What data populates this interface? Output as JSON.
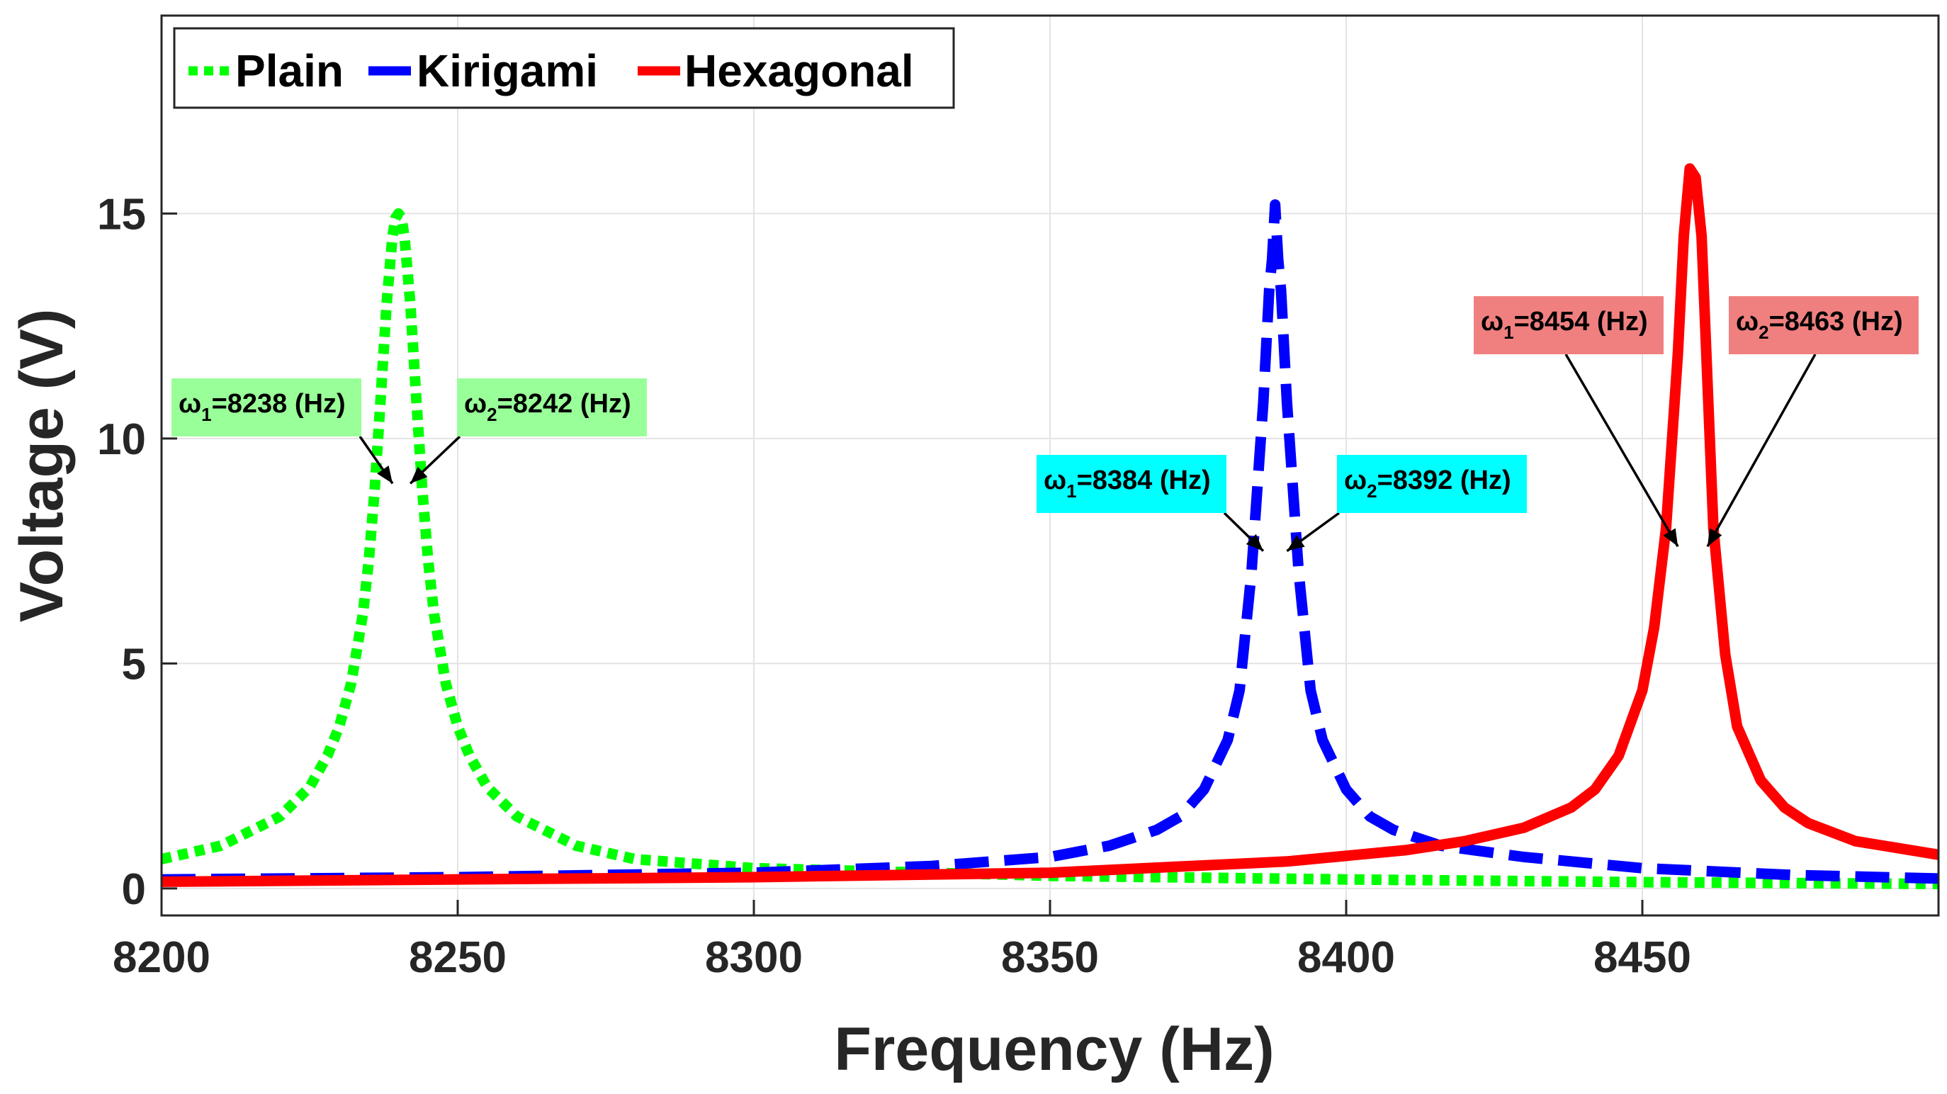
{
  "chart_data": {
    "type": "line",
    "title": "",
    "xlabel": "Frequency (Hz)",
    "ylabel": "Voltage (V)",
    "xlim": [
      8200,
      8500
    ],
    "ylim": [
      -0.6,
      19.4
    ],
    "xticks": [
      8200,
      8250,
      8300,
      8350,
      8400,
      8450
    ],
    "yticks": [
      0,
      5,
      10,
      15
    ],
    "grid": true,
    "legend": {
      "placement": "top-left",
      "orientation": "horizontal"
    },
    "series": [
      {
        "name": "Plain",
        "color": "#00ff00",
        "style": "dotted",
        "x": [
          8200,
          8210,
          8220,
          8225,
          8228,
          8230,
          8232,
          8234,
          8235,
          8236,
          8237,
          8238,
          8239,
          8239.5,
          8240,
          8240.5,
          8241,
          8242,
          8243,
          8244,
          8245,
          8246,
          8248,
          8250,
          8252,
          8255,
          8260,
          8270,
          8280,
          8300,
          8350,
          8400,
          8450,
          8500
        ],
        "y": [
          0.65,
          0.95,
          1.6,
          2.25,
          2.95,
          3.6,
          4.55,
          6.1,
          7.3,
          8.9,
          10.9,
          13.0,
          14.5,
          14.9,
          15.0,
          14.9,
          14.5,
          13.0,
          10.9,
          8.9,
          7.3,
          6.1,
          4.55,
          3.6,
          2.95,
          2.25,
          1.6,
          0.95,
          0.65,
          0.45,
          0.28,
          0.2,
          0.14,
          0.1
        ]
      },
      {
        "name": "Kirigami",
        "color": "#0000ff",
        "style": "dashed",
        "x": [
          8200,
          8250,
          8300,
          8330,
          8350,
          8360,
          8368,
          8372,
          8376,
          8380,
          8382,
          8384,
          8386,
          8387,
          8387.5,
          8388,
          8388.5,
          8389,
          8390,
          8392,
          8394,
          8396,
          8400,
          8404,
          8408,
          8416,
          8430,
          8450,
          8475,
          8500
        ],
        "y": [
          0.2,
          0.25,
          0.35,
          0.5,
          0.7,
          0.95,
          1.3,
          1.6,
          2.2,
          3.3,
          4.4,
          7.0,
          10.8,
          13.3,
          14.0,
          15.2,
          14.0,
          13.3,
          10.8,
          7.0,
          4.4,
          3.3,
          2.2,
          1.6,
          1.3,
          0.95,
          0.7,
          0.45,
          0.3,
          0.22
        ]
      },
      {
        "name": "Hexagonal",
        "color": "#ff0000",
        "style": "solid",
        "x": [
          8200,
          8300,
          8350,
          8390,
          8410,
          8420,
          8430,
          8438,
          8442,
          8446,
          8450,
          8452,
          8454,
          8456,
          8457,
          8458,
          8459,
          8460,
          8462,
          8464,
          8466,
          8470,
          8474,
          8478,
          8486,
          8500
        ],
        "y": [
          0.15,
          0.25,
          0.35,
          0.6,
          0.85,
          1.05,
          1.35,
          1.8,
          2.2,
          2.95,
          4.4,
          5.8,
          8.0,
          11.9,
          14.5,
          16.0,
          15.8,
          14.5,
          8.0,
          5.2,
          3.6,
          2.4,
          1.8,
          1.45,
          1.05,
          0.75
        ]
      }
    ],
    "annotations": [
      {
        "symbol": "ω",
        "subscript": "1",
        "text": "=8238 (Hz)",
        "target": [
          8239,
          9.0
        ],
        "box_color": "#99ff99"
      },
      {
        "symbol": "ω",
        "subscript": "2",
        "text": "=8242 (Hz)",
        "target": [
          8242,
          9.0
        ],
        "box_color": "#99ff99"
      },
      {
        "symbol": "ω",
        "subscript": "1",
        "text": "=8384 (Hz)",
        "target": [
          8386,
          7.5
        ],
        "box_color": "#00ffff"
      },
      {
        "symbol": "ω",
        "subscript": "2",
        "text": "=8392 (Hz)",
        "target": [
          8390,
          7.5
        ],
        "box_color": "#00ffff"
      },
      {
        "symbol": "ω",
        "subscript": "1",
        "text": "=8454 (Hz)",
        "target": [
          8456,
          7.6
        ],
        "box_color": "#f08080"
      },
      {
        "symbol": "ω",
        "subscript": "2",
        "text": "=8463 (Hz)",
        "target": [
          8461,
          7.6
        ],
        "box_color": "#f08080"
      }
    ]
  }
}
